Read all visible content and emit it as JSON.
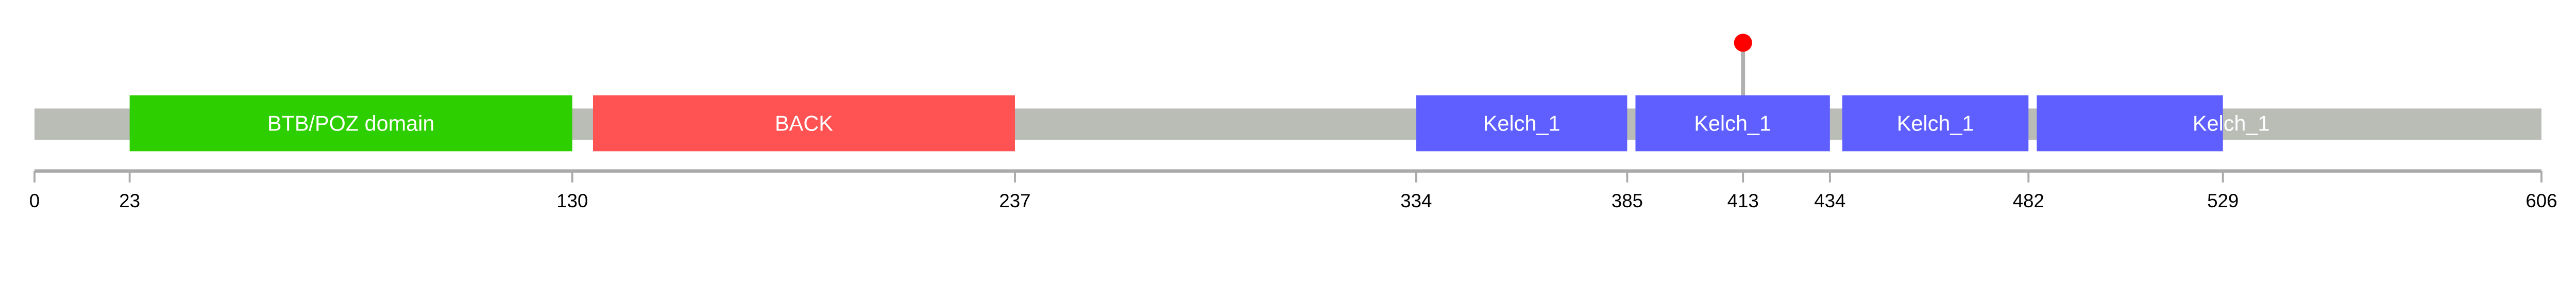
{
  "protein": {
    "length": 606,
    "backbone_color": "#babcb6"
  },
  "domains": [
    {
      "label": "BTB/POZ domain",
      "start": 23,
      "end": 130,
      "color": "#2ecf00"
    },
    {
      "label": "BACK",
      "start": 135,
      "end": 237,
      "color": "#ff5353"
    },
    {
      "label": "Kelch_1",
      "start": 334,
      "end": 385,
      "color": "#5f5fff"
    },
    {
      "label": "Kelch_1",
      "start": 387,
      "end": 434,
      "color": "#5f5fff"
    },
    {
      "label": "Kelch_1",
      "start": 437,
      "end": 482,
      "color": "#5f5fff"
    },
    {
      "label": "Kelch_1",
      "start": 484,
      "end": 529,
      "color": "#5f5fff",
      "label_at": 531
    }
  ],
  "mutations": [
    {
      "position": 413,
      "color": "#ff0000"
    }
  ],
  "axis": {
    "ticks": [
      "0",
      "23",
      "130",
      "237",
      "334",
      "385",
      "413",
      "434",
      "482",
      "529",
      "606"
    ]
  }
}
